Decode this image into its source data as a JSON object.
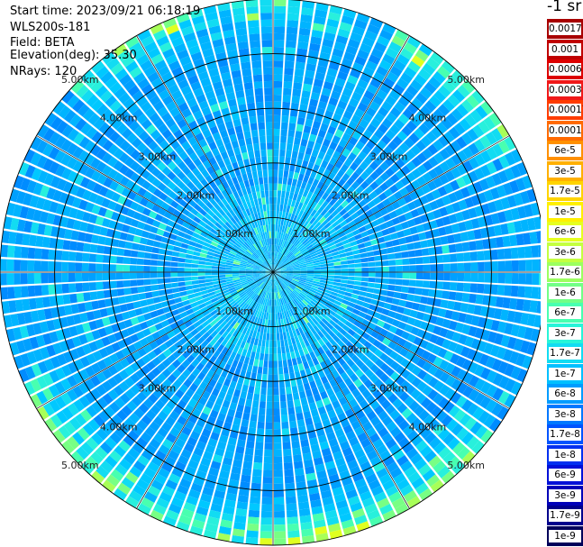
{
  "info": {
    "start_time": "Start time: 2023/09/21 06:18:19",
    "instrument": "WLS200s-181",
    "field": "Field: BETA",
    "elevation": "Elevation(deg): 35.30",
    "nrays": "NRays: 120"
  },
  "unit_label": "-1 sr",
  "chart_data": {
    "type": "heatmap",
    "projection": "polar (PPI scan)",
    "rays": 120,
    "range_rings_km": [
      1,
      2,
      3,
      4,
      5
    ],
    "ring_labels": [
      "1.00km",
      "2.00km",
      "3.00km",
      "4.00km",
      "5.00km"
    ],
    "max_range_km": 5.0,
    "color_scale": "log",
    "colorbar": [
      {
        "label": "0.0017",
        "color": "#a80000"
      },
      {
        "label": "0.001",
        "color": "#c00000"
      },
      {
        "label": "0.0006",
        "color": "#dd0000"
      },
      {
        "label": "0.0003",
        "color": "#f01818"
      },
      {
        "label": "0.00017",
        "color": "#ff3c00"
      },
      {
        "label": "0.0001",
        "color": "#ff6a00"
      },
      {
        "label": "6e-5",
        "color": "#ff9000"
      },
      {
        "label": "3e-5",
        "color": "#ffb000"
      },
      {
        "label": "1.7e-5",
        "color": "#ffd400"
      },
      {
        "label": "1e-5",
        "color": "#fff000"
      },
      {
        "label": "6e-6",
        "color": "#e6ff20"
      },
      {
        "label": "3e-6",
        "color": "#c4ff40"
      },
      {
        "label": "1.7e-6",
        "color": "#9cff60"
      },
      {
        "label": "1e-6",
        "color": "#72ff86"
      },
      {
        "label": "6e-7",
        "color": "#48ffb0"
      },
      {
        "label": "3e-7",
        "color": "#28f4d8"
      },
      {
        "label": "1.7e-7",
        "color": "#12dcf2"
      },
      {
        "label": "1e-7",
        "color": "#00c0ff"
      },
      {
        "label": "6e-8",
        "color": "#009cff"
      },
      {
        "label": "3e-8",
        "color": "#0078ff"
      },
      {
        "label": "1.7e-8",
        "color": "#0054ff"
      },
      {
        "label": "1e-8",
        "color": "#0030f0"
      },
      {
        "label": "6e-9",
        "color": "#0010d8"
      },
      {
        "label": "3e-9",
        "color": "#0000b8"
      },
      {
        "label": "1.7e-9",
        "color": "#00008c"
      },
      {
        "label": "1e-9",
        "color": "#00005a"
      }
    ]
  }
}
